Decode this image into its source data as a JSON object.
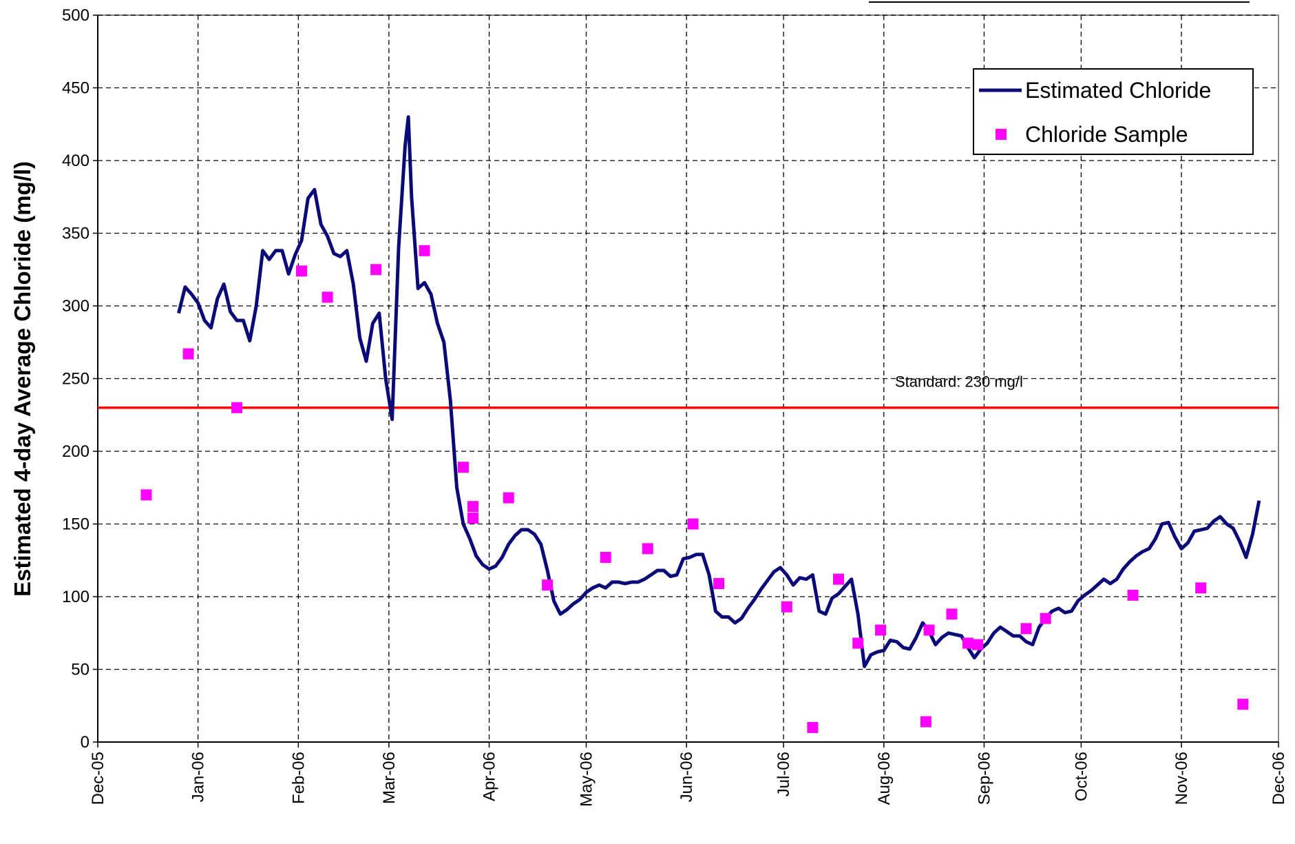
{
  "chart_data": {
    "type": "line",
    "y_label": "Estimated 4-day Average Chloride (mg/l)",
    "xlim": [
      0,
      365
    ],
    "xticks": [
      {
        "value": 0,
        "label": "Dec-05"
      },
      {
        "value": 31,
        "label": "Jan-06"
      },
      {
        "value": 62,
        "label": "Feb-06"
      },
      {
        "value": 90,
        "label": "Mar-06"
      },
      {
        "value": 121,
        "label": "Apr-06"
      },
      {
        "value": 151,
        "label": "May-06"
      },
      {
        "value": 182,
        "label": "Jun-06"
      },
      {
        "value": 212,
        "label": "Jul-06"
      },
      {
        "value": 243,
        "label": "Aug-06"
      },
      {
        "value": 274,
        "label": "Sep-06"
      },
      {
        "value": 304,
        "label": "Oct-06"
      },
      {
        "value": 335,
        "label": "Nov-06"
      },
      {
        "value": 365,
        "label": "Dec-06"
      }
    ],
    "ylim": [
      0,
      500
    ],
    "yticks": [
      0,
      50,
      100,
      150,
      200,
      250,
      300,
      350,
      400,
      450,
      500
    ],
    "grid": true,
    "legend": "upper right",
    "reference_line": {
      "value": 230,
      "label": "Standard: 230 mg/l",
      "color": "#ff0000"
    },
    "series": [
      {
        "name": "Estimated Chloride",
        "color": "#0a0a78",
        "mark": "line",
        "x": [
          25,
          27,
          29,
          31,
          33,
          35,
          37,
          39,
          41,
          43,
          45,
          47,
          49,
          51,
          53,
          55,
          57,
          59,
          61,
          63,
          65,
          67,
          69,
          71,
          73,
          75,
          77,
          79,
          81,
          83,
          85,
          87,
          89,
          91,
          93,
          95,
          96,
          97,
          99,
          101,
          103,
          105,
          107,
          109,
          111,
          113,
          115,
          117,
          119,
          121,
          123,
          125,
          127,
          129,
          131,
          133,
          135,
          137,
          139,
          141,
          143,
          145,
          147,
          149,
          151,
          153,
          155,
          157,
          159,
          161,
          163,
          165,
          167,
          169,
          171,
          173,
          175,
          177,
          179,
          181,
          183,
          185,
          187,
          189,
          191,
          193,
          195,
          197,
          199,
          201,
          203,
          205,
          207,
          209,
          211,
          213,
          215,
          217,
          219,
          221,
          223,
          225,
          227,
          229,
          231,
          233,
          235,
          237,
          239,
          241,
          243,
          245,
          247,
          249,
          251,
          253,
          255,
          257,
          259,
          261,
          263,
          265,
          267,
          269,
          271,
          273,
          275,
          277,
          279,
          281,
          283,
          285,
          287,
          289,
          291,
          293,
          295,
          297,
          299,
          301,
          303,
          305,
          307,
          309,
          311,
          313,
          315,
          317,
          319,
          321,
          323,
          325,
          327,
          329,
          331,
          333,
          335,
          337,
          339,
          341,
          343,
          345,
          347,
          349,
          351,
          353,
          355,
          357,
          359
        ],
        "values": [
          295,
          313,
          308,
          302,
          290,
          285,
          305,
          315,
          296,
          290,
          290,
          276,
          300,
          338,
          332,
          338,
          338,
          322,
          335,
          345,
          374,
          380,
          356,
          348,
          336,
          334,
          338,
          315,
          278,
          262,
          288,
          295,
          250,
          222,
          340,
          410,
          430,
          375,
          312,
          316,
          308,
          288,
          275,
          235,
          175,
          150,
          140,
          128,
          122,
          119,
          121,
          127,
          136,
          142,
          146,
          146,
          143,
          136,
          118,
          97,
          88,
          91,
          95,
          98,
          103,
          106,
          108,
          106,
          110,
          110,
          109,
          110,
          110,
          112,
          115,
          118,
          118,
          114,
          115,
          126,
          127,
          129,
          129,
          115,
          90,
          86,
          86,
          82,
          85,
          92,
          98,
          105,
          111,
          117,
          120,
          115,
          108,
          113,
          112,
          115,
          90,
          88,
          99,
          102,
          107,
          112,
          88,
          52,
          60,
          62,
          63,
          70,
          69,
          65,
          64,
          72,
          82,
          76,
          67,
          72,
          75,
          74,
          73,
          65,
          58,
          64,
          68,
          75,
          79,
          76,
          73,
          73,
          69,
          67,
          79,
          85,
          90,
          92,
          89,
          90,
          97,
          101,
          104,
          108,
          112,
          109,
          112,
          119,
          124,
          128,
          131,
          133,
          140,
          150,
          151,
          141,
          133,
          137,
          145,
          146,
          147,
          152,
          155,
          150,
          147,
          138,
          127,
          143,
          166
        ]
      },
      {
        "name": "Chloride Sample",
        "color": "#ff00ff",
        "mark": "square",
        "x": [
          15,
          28,
          43,
          63,
          71,
          86,
          101,
          113,
          116,
          116,
          127,
          139,
          157,
          170,
          184,
          192,
          213,
          221,
          229,
          235,
          242,
          256,
          257,
          264,
          269,
          272,
          287,
          293,
          320,
          341,
          354
        ],
        "values": [
          170,
          267,
          230,
          324,
          306,
          325,
          338,
          189,
          162,
          154,
          168,
          108,
          127,
          133,
          150,
          109,
          93,
          10,
          112,
          68,
          77,
          14,
          77,
          88,
          68,
          67,
          78,
          85,
          101,
          106,
          26
        ]
      }
    ]
  }
}
